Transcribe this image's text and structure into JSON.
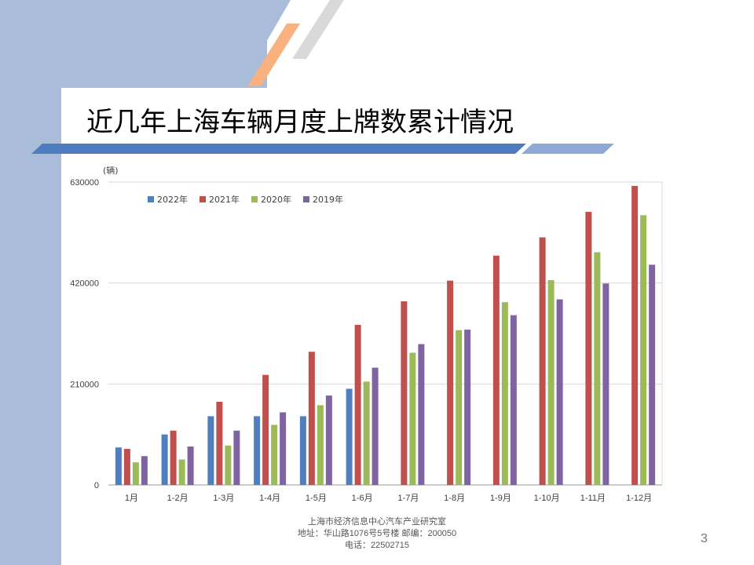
{
  "slide": {
    "title": "近几年上海车辆月度上牌数累计情况",
    "page_number": "3",
    "footer_line1": "上海市经济信息中心汽车产业研究室",
    "footer_line2": "地址：华山路1076号5号楼   邮编：200050",
    "footer_line3": "电话：22502715"
  },
  "colors": {
    "band": "#a9bcd9",
    "stripe_orange": "#f9b27f",
    "stripe_grey": "#d9d9d9",
    "underline": "#4f7bbf",
    "underline_light": "#8ea9d4"
  },
  "chart_data": {
    "type": "bar",
    "unit_label": "(辆)",
    "categories": [
      "1月",
      "1-2月",
      "1-3月",
      "1-4月",
      "1-5月",
      "1-6月",
      "1-7月",
      "1-8月",
      "1-9月",
      "1-10月",
      "1-11月",
      "1-12月"
    ],
    "ylim": [
      0,
      630000
    ],
    "yticks": [
      "0",
      "210000",
      "420000",
      "630000"
    ],
    "legend_position": "top-left",
    "grid": true,
    "series": [
      {
        "name": "2022年",
        "color": "#4f7fbf",
        "values": [
          78000,
          105000,
          143000,
          143000,
          143000,
          200000,
          null,
          null,
          null,
          null,
          null,
          null
        ]
      },
      {
        "name": "2021年",
        "color": "#c0504d",
        "values": [
          75000,
          113000,
          173000,
          229000,
          277000,
          333000,
          382000,
          425000,
          477000,
          515000,
          568000,
          622000
        ]
      },
      {
        "name": "2020年",
        "color": "#9bbb59",
        "values": [
          47000,
          53000,
          82000,
          125000,
          166000,
          215000,
          275000,
          322000,
          380000,
          426000,
          484000,
          561000
        ]
      },
      {
        "name": "2019年",
        "color": "#8064a2",
        "values": [
          60000,
          80000,
          113000,
          151000,
          186000,
          244000,
          293000,
          323000,
          353000,
          386000,
          419000,
          458000
        ]
      }
    ]
  }
}
